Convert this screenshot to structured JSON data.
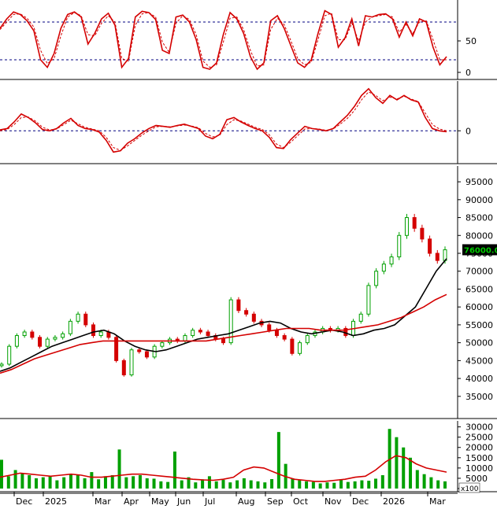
{
  "chart_data": [
    {
      "type": "line",
      "panel": "stochastic",
      "yticks": [
        "50",
        "0"
      ],
      "ylim": [
        0,
        100
      ],
      "reference_lines": [
        80,
        20
      ],
      "series": [
        {
          "role": "main",
          "color": "#d40000",
          "values": [
            70,
            85,
            96,
            92,
            82,
            66,
            20,
            8,
            30,
            70,
            92,
            96,
            88,
            45,
            62,
            85,
            94,
            75,
            8,
            22,
            88,
            97,
            95,
            84,
            35,
            30,
            88,
            91,
            80,
            52,
            8,
            5,
            15,
            60,
            95,
            85,
            62,
            25,
            5,
            15,
            82,
            90,
            70,
            42,
            15,
            8,
            20,
            62,
            98,
            92,
            40,
            55,
            85,
            42,
            90,
            88,
            92,
            93,
            85,
            56,
            80,
            58,
            85,
            80,
            40,
            12,
            25
          ]
        },
        {
          "role": "signal",
          "color": "#d40000",
          "dashed": true,
          "values": [
            68,
            80,
            92,
            93,
            86,
            72,
            35,
            14,
            22,
            58,
            88,
            95,
            90,
            60,
            58,
            78,
            90,
            80,
            22,
            18,
            75,
            93,
            95,
            88,
            48,
            32,
            78,
            90,
            84,
            60,
            18,
            8,
            12,
            48,
            86,
            88,
            68,
            35,
            10,
            12,
            68,
            86,
            76,
            50,
            22,
            12,
            16,
            52,
            90,
            94,
            52,
            52,
            78,
            50,
            80,
            88,
            90,
            92,
            88,
            64,
            76,
            62,
            80,
            82,
            52,
            20,
            20
          ]
        }
      ]
    },
    {
      "type": "line",
      "panel": "macd",
      "yticks": [
        "0"
      ],
      "ylim": [
        -60,
        100
      ],
      "reference_lines": [
        0
      ],
      "series": [
        {
          "role": "main",
          "color": "#d40000",
          "values": [
            2,
            5,
            20,
            38,
            30,
            18,
            3,
            0,
            5,
            18,
            28,
            12,
            5,
            3,
            -3,
            -22,
            -48,
            -45,
            -28,
            -18,
            -5,
            5,
            12,
            10,
            8,
            12,
            15,
            10,
            5,
            -12,
            -18,
            -8,
            25,
            30,
            20,
            12,
            5,
            0,
            -15,
            -38,
            -40,
            -20,
            -5,
            10,
            5,
            3,
            0,
            5,
            20,
            35,
            55,
            80,
            95,
            75,
            62,
            80,
            70,
            80,
            70,
            65,
            30,
            5,
            0,
            -2
          ]
        },
        {
          "role": "signal",
          "color": "#d40000",
          "dashed": true,
          "values": [
            0,
            3,
            14,
            30,
            31,
            22,
            8,
            2,
            4,
            14,
            24,
            16,
            8,
            4,
            0,
            -15,
            -38,
            -44,
            -34,
            -22,
            -10,
            0,
            9,
            10,
            9,
            11,
            13,
            11,
            7,
            -6,
            -14,
            -10,
            14,
            25,
            22,
            15,
            8,
            3,
            -9,
            -30,
            -38,
            -26,
            -11,
            4,
            5,
            4,
            1,
            4,
            15,
            28,
            46,
            70,
            88,
            80,
            68,
            76,
            72,
            78,
            72,
            66,
            40,
            14,
            4,
            0
          ]
        }
      ]
    },
    {
      "type": "line",
      "panel": "price",
      "yticks": [
        "95000",
        "90000",
        "85000",
        "80000",
        "75000",
        "70000",
        "65000",
        "60000",
        "55000",
        "50000",
        "45000",
        "40000",
        "35000"
      ],
      "ylim": [
        31000,
        97000
      ],
      "last_price_label": "76000.00",
      "last_price_label_color": "#00cc00",
      "up_color": "#00a000",
      "down_color": "#d40000",
      "close_values": [
        44000,
        49000,
        52000,
        53000,
        51500,
        49000,
        51000,
        51500,
        52500,
        56000,
        58000,
        55000,
        52000,
        53000,
        51500,
        45000,
        41000,
        48000,
        47500,
        46000,
        49000,
        50000,
        51000,
        50500,
        52000,
        53500,
        53000,
        52000,
        51000,
        50000,
        62000,
        59000,
        58000,
        56000,
        55000,
        53500,
        52000,
        51000,
        47000,
        50000,
        52000,
        53000,
        54000,
        53500,
        54000,
        52000,
        56000,
        58000,
        66000,
        70000,
        72000,
        74000,
        80000,
        85000,
        82000,
        79000,
        75000,
        73000,
        76000
      ],
      "series": [
        {
          "role": "ma_short",
          "color": "#000000",
          "values": [
            42000,
            43000,
            44500,
            46000,
            47500,
            49000,
            50000,
            51000,
            52000,
            53000,
            53500,
            52500,
            50500,
            49000,
            48000,
            47500,
            48000,
            49000,
            50000,
            51000,
            51500,
            52000,
            52500,
            53500,
            54500,
            55500,
            56000,
            55500,
            54000,
            53000,
            52500,
            53000,
            53500,
            53000,
            52000,
            52500,
            53500,
            54000,
            55000,
            57500,
            60000,
            65000,
            70000,
            73500
          ]
        },
        {
          "role": "ma_long",
          "color": "#d40000",
          "values": [
            41500,
            42500,
            44000,
            45500,
            46500,
            47500,
            48500,
            49500,
            50000,
            50500,
            50500,
            50500,
            50500,
            50500,
            50500,
            50500,
            50500,
            50500,
            50500,
            51000,
            51500,
            52000,
            52500,
            53000,
            53500,
            54000,
            54000,
            54000,
            53500,
            53500,
            53500,
            54000,
            54500,
            55000,
            56000,
            57000,
            58500,
            60000,
            62000,
            63500
          ]
        }
      ]
    },
    {
      "type": "bar",
      "panel": "volume",
      "yticks": [
        "30000",
        "25000",
        "20000",
        "15000",
        "10000",
        "5000",
        "0"
      ],
      "unit_label": "x100",
      "ylim": [
        0,
        31000
      ],
      "bar_color": "#00a000",
      "values": [
        14000,
        6000,
        9000,
        7500,
        6500,
        5000,
        5500,
        6000,
        4000,
        5500,
        7000,
        6500,
        5000,
        8000,
        4500,
        6000,
        6500,
        19000,
        5500,
        6000,
        6500,
        5000,
        4800,
        3500,
        3200,
        18000,
        4000,
        5500,
        3000,
        4500,
        6000,
        3500,
        4200,
        3000,
        4000,
        5000,
        4000,
        3500,
        3000,
        4600,
        27500,
        12000,
        5000,
        4000,
        3500,
        3200,
        2500,
        3000,
        2800,
        4500,
        3200,
        3500,
        4000,
        3800,
        4800,
        6500,
        29000,
        25000,
        20000,
        15000,
        9000,
        7000,
        5500,
        4000,
        3500
      ],
      "series": [
        {
          "role": "volume_ma",
          "color": "#d40000",
          "values": [
            5500,
            6500,
            7500,
            7000,
            6500,
            6000,
            6500,
            7000,
            6500,
            5500,
            5500,
            6000,
            6500,
            7000,
            7000,
            6500,
            6000,
            5500,
            5000,
            4500,
            4200,
            4000,
            4500,
            5500,
            9000,
            10500,
            10000,
            8000,
            6000,
            4500,
            4000,
            3500,
            3500,
            4000,
            4500,
            5500,
            6000,
            9000,
            13000,
            16000,
            15000,
            12000,
            10000,
            9000,
            8000
          ]
        }
      ]
    }
  ],
  "x_axis": {
    "labels": [
      "Dec",
      "2025",
      "Mar",
      "Apr",
      "May",
      "Jun",
      "Jul",
      "Aug",
      "Sep",
      "Oct",
      "Nov",
      "Dec",
      "2026",
      "Mar"
    ]
  }
}
